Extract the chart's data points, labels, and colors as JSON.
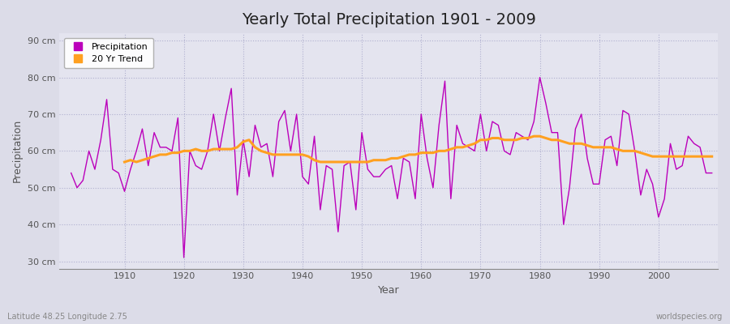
{
  "title": "Yearly Total Precipitation 1901 - 2009",
  "xlabel": "Year",
  "ylabel": "Precipitation",
  "lat_lon_label": "Latitude 48.25 Longitude 2.75",
  "watermark": "worldspecies.org",
  "ylim": [
    28,
    92
  ],
  "yticks": [
    30,
    40,
    50,
    60,
    70,
    80,
    90
  ],
  "ytick_labels": [
    "30 cm",
    "40 cm",
    "50 cm",
    "60 cm",
    "70 cm",
    "80 cm",
    "90 cm"
  ],
  "fig_background_color": "#dcdce8",
  "plot_bg_color": "#e4e4ef",
  "precip_color": "#bb00bb",
  "trend_color": "#ffa020",
  "years": [
    1901,
    1902,
    1903,
    1904,
    1905,
    1906,
    1907,
    1908,
    1909,
    1910,
    1911,
    1912,
    1913,
    1914,
    1915,
    1916,
    1917,
    1918,
    1919,
    1920,
    1921,
    1922,
    1923,
    1924,
    1925,
    1926,
    1927,
    1928,
    1929,
    1930,
    1931,
    1932,
    1933,
    1934,
    1935,
    1936,
    1937,
    1938,
    1939,
    1940,
    1941,
    1942,
    1943,
    1944,
    1945,
    1946,
    1947,
    1948,
    1949,
    1950,
    1951,
    1952,
    1953,
    1954,
    1955,
    1956,
    1957,
    1958,
    1959,
    1960,
    1961,
    1962,
    1963,
    1964,
    1965,
    1966,
    1967,
    1968,
    1969,
    1970,
    1971,
    1972,
    1973,
    1974,
    1975,
    1976,
    1977,
    1978,
    1979,
    1980,
    1981,
    1982,
    1983,
    1984,
    1985,
    1986,
    1987,
    1988,
    1989,
    1990,
    1991,
    1992,
    1993,
    1994,
    1995,
    1996,
    1997,
    1998,
    1999,
    2000,
    2001,
    2002,
    2003,
    2004,
    2005,
    2006,
    2007,
    2008,
    2009
  ],
  "precip": [
    54,
    50,
    52,
    60,
    55,
    63,
    74,
    55,
    54,
    49,
    55,
    60,
    66,
    56,
    65,
    61,
    61,
    60,
    69,
    31,
    60,
    56,
    55,
    60,
    70,
    60,
    69,
    77,
    48,
    63,
    53,
    67,
    61,
    62,
    53,
    68,
    71,
    60,
    70,
    53,
    51,
    64,
    44,
    56,
    55,
    38,
    56,
    57,
    44,
    65,
    55,
    53,
    53,
    55,
    56,
    47,
    58,
    57,
    47,
    70,
    58,
    50,
    67,
    79,
    47,
    67,
    62,
    61,
    60,
    70,
    60,
    68,
    67,
    60,
    59,
    65,
    64,
    63,
    68,
    80,
    73,
    65,
    65,
    40,
    50,
    66,
    70,
    58,
    51,
    51,
    63,
    64,
    56,
    71,
    70,
    60,
    48,
    55,
    51,
    42,
    47,
    62,
    55,
    56,
    64,
    62,
    61,
    54,
    54
  ],
  "trend": [
    null,
    null,
    null,
    null,
    null,
    null,
    null,
    null,
    null,
    57,
    57.5,
    57,
    57.5,
    58,
    58.5,
    59,
    59,
    59.5,
    59.5,
    60,
    60,
    60.5,
    60,
    60,
    60.5,
    60.5,
    60.5,
    60.5,
    61,
    62.5,
    63,
    61,
    60,
    59.5,
    59,
    59,
    59,
    59,
    59,
    59,
    58.5,
    57.5,
    57,
    57,
    57,
    57,
    57,
    57,
    57,
    57,
    57,
    57.5,
    57.5,
    57.5,
    58,
    58,
    58.5,
    59,
    59,
    59.5,
    59.5,
    59.5,
    60,
    60,
    60.5,
    61,
    61,
    61.5,
    62,
    63,
    63,
    63.5,
    63.5,
    63,
    63,
    63,
    63.5,
    63.5,
    64,
    64,
    63.5,
    63,
    63,
    62.5,
    62,
    62,
    62,
    61.5,
    61,
    61,
    61,
    61,
    60.5,
    60,
    60,
    60,
    59.5,
    59,
    58.5,
    58.5,
    58.5,
    58.5,
    58.5,
    58.5,
    58.5,
    58.5,
    58.5,
    58.5,
    58.5
  ],
  "title_fontsize": 14,
  "axis_label_fontsize": 9,
  "tick_fontsize": 8,
  "legend_fontsize": 8,
  "annotation_fontsize": 7,
  "xlim": [
    1899,
    2010
  ],
  "xticks": [
    1910,
    1920,
    1930,
    1940,
    1950,
    1960,
    1970,
    1980,
    1990,
    2000
  ]
}
